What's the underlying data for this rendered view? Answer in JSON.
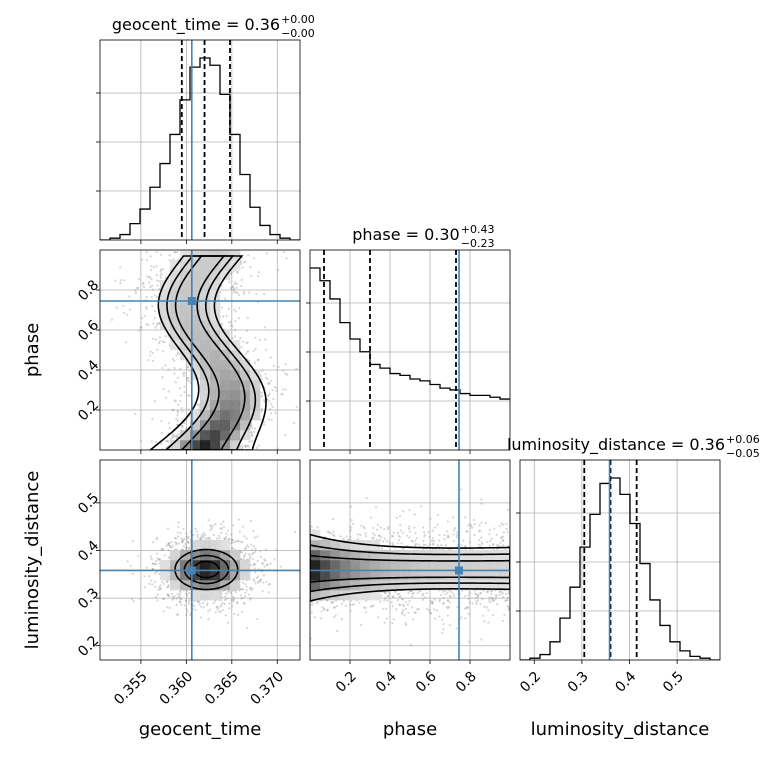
{
  "chart_data": {
    "type": "corner",
    "parameters": [
      {
        "name": "geocent_time",
        "range": [
          0.3505,
          0.3725
        ],
        "ticks": [
          0.355,
          0.36,
          0.365,
          0.37
        ],
        "tick_labels": [
          "0.355",
          "0.360",
          "0.365",
          "0.370"
        ],
        "median": 0.362,
        "lo": 0.3595,
        "hi": 0.3648,
        "truth": 0.3606,
        "title": "geocent_time = 0.36",
        "title_plus": "+0.00",
        "title_minus": "−0.00"
      },
      {
        "name": "phase",
        "range": [
          0.0,
          1.0
        ],
        "ticks": [
          0.2,
          0.4,
          0.6,
          0.8
        ],
        "tick_labels": [
          "0.2",
          "0.4",
          "0.6",
          "0.8"
        ],
        "median": 0.3,
        "lo": 0.07,
        "hi": 0.73,
        "truth": 0.745,
        "title": "phase = 0.30",
        "title_plus": "+0.43",
        "title_minus": "−0.23"
      },
      {
        "name": "luminosity_distance",
        "range": [
          0.17,
          0.59
        ],
        "ticks": [
          0.2,
          0.3,
          0.4,
          0.5
        ],
        "tick_labels": [
          "0.2",
          "0.3",
          "0.4",
          "0.5"
        ],
        "median": 0.36,
        "lo": 0.305,
        "hi": 0.415,
        "truth": 0.358,
        "title": "luminosity_distance = 0.36",
        "title_plus": "+0.06",
        "title_minus": "−0.05"
      }
    ],
    "histograms": [
      {
        "param": "geocent_time",
        "bins": 20,
        "x_start": 0.3505,
        "x_end": 0.3725,
        "counts": [
          0,
          1,
          3,
          9,
          17,
          29,
          42,
          58,
          77,
          95,
          100,
          96,
          80,
          58,
          36,
          18,
          8,
          3,
          1,
          0
        ]
      },
      {
        "param": "phase",
        "bins": 20,
        "x_start": 0.0,
        "x_end": 1.0,
        "counts": [
          100,
          93,
          83,
          70,
          61,
          54,
          47,
          45,
          42,
          41,
          39,
          38,
          36,
          34,
          33,
          31,
          30,
          30,
          29,
          28
        ]
      },
      {
        "param": "luminosity_distance",
        "bins": 20,
        "x_start": 0.17,
        "x_end": 0.59,
        "counts": [
          0,
          1,
          3,
          10,
          23,
          40,
          62,
          80,
          97,
          100,
          91,
          75,
          53,
          33,
          19,
          10,
          5,
          2,
          1,
          0
        ]
      }
    ]
  }
}
